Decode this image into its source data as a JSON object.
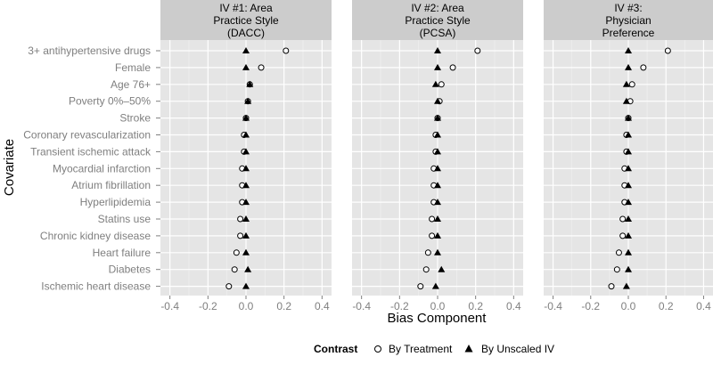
{
  "chart_data": {
    "type": "scatter",
    "xlabel": "Bias Component",
    "ylabel": "Covariate",
    "xlim": [
      -0.45,
      0.45
    ],
    "xticks": [
      -0.4,
      -0.2,
      0.0,
      0.2,
      0.4
    ],
    "xtick_labels": [
      "-0.4",
      "-0.2",
      "0.0",
      "0.2",
      "0.4"
    ],
    "grid": true,
    "legend": {
      "title": "Contrast",
      "placement": "bottom",
      "entries": [
        {
          "label": "By Treatment",
          "marker": "open-circle"
        },
        {
          "label": "By Unscaled IV",
          "marker": "filled-triangle"
        }
      ]
    },
    "covariates": [
      "3+ antihypertensive drugs",
      "Female",
      "Age 76+",
      "Poverty 0%–50%",
      "Stroke",
      "Coronary revascularization",
      "Transient ischemic attack",
      "Myocardial infarction",
      "Atrium fibrillation",
      "Hyperlipidemia",
      "Statins use",
      "Chronic kidney disease",
      "Heart failure",
      "Diabetes",
      "Ischemic heart disease"
    ],
    "panels": [
      {
        "title_lines": [
          "IV #1: Area",
          "Practice Style",
          "(DACC)"
        ],
        "series": [
          {
            "name": "By Treatment",
            "values": [
              0.21,
              0.08,
              0.02,
              0.01,
              0.0,
              -0.01,
              -0.01,
              -0.02,
              -0.02,
              -0.02,
              -0.03,
              -0.03,
              -0.05,
              -0.06,
              -0.09
            ]
          },
          {
            "name": "By Unscaled IV",
            "values": [
              0.0,
              0.0,
              0.02,
              0.01,
              0.0,
              0.0,
              0.0,
              0.0,
              0.0,
              0.0,
              0.0,
              0.0,
              0.0,
              0.01,
              0.0
            ]
          }
        ]
      },
      {
        "title_lines": [
          "IV #2: Area",
          "Practice Style",
          "(PCSA)"
        ],
        "series": [
          {
            "name": "By Treatment",
            "values": [
              0.21,
              0.08,
              0.02,
              0.01,
              0.0,
              -0.01,
              -0.01,
              -0.02,
              -0.02,
              -0.02,
              -0.03,
              -0.03,
              -0.05,
              -0.06,
              -0.09
            ]
          },
          {
            "name": "By Unscaled IV",
            "values": [
              0.0,
              0.0,
              -0.01,
              0.0,
              0.0,
              0.0,
              0.0,
              0.0,
              0.0,
              0.0,
              0.0,
              0.0,
              0.0,
              0.02,
              -0.01
            ]
          }
        ]
      },
      {
        "title_lines": [
          "IV #3:",
          "Physician",
          "Preference"
        ],
        "series": [
          {
            "name": "By Treatment",
            "values": [
              0.21,
              0.08,
              0.02,
              0.01,
              0.0,
              -0.01,
              -0.01,
              -0.02,
              -0.02,
              -0.02,
              -0.03,
              -0.03,
              -0.05,
              -0.06,
              -0.09
            ]
          },
          {
            "name": "By Unscaled IV",
            "values": [
              0.0,
              0.0,
              -0.01,
              -0.01,
              0.0,
              0.0,
              0.0,
              0.0,
              0.0,
              0.0,
              0.0,
              0.0,
              0.0,
              0.0,
              -0.01
            ]
          }
        ]
      }
    ]
  },
  "colors": {
    "panel_background": "#e5e5e5",
    "strip_background": "#cccccc",
    "grid_major": "#ffffff",
    "grid_minor": "#f2f2f2",
    "text": "#333333",
    "tick_label": "#7f7f7f"
  }
}
